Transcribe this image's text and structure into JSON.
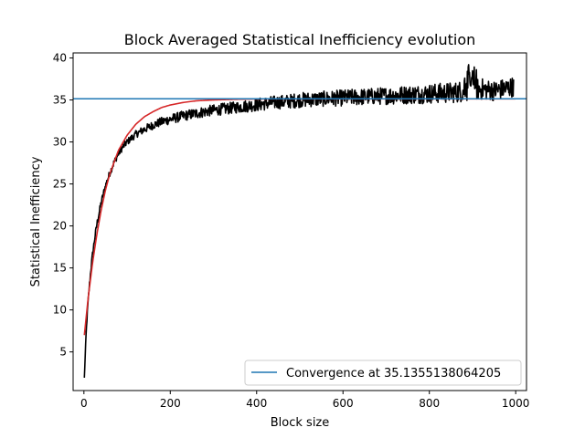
{
  "chart_data": {
    "type": "line",
    "title": "Block Averaged Statistical Inefficiency evolution",
    "xlabel": "Block size",
    "ylabel": "Statistical Inefficiency",
    "xlim": [
      -25,
      1025
    ],
    "ylim": [
      0.4,
      40.6
    ],
    "xticks": [
      0,
      200,
      400,
      600,
      800,
      1000
    ],
    "xtick_labels": [
      "0",
      "200",
      "400",
      "600",
      "800",
      "1000"
    ],
    "yticks": [
      5,
      10,
      15,
      20,
      25,
      30,
      35,
      40
    ],
    "ytick_labels": [
      "5",
      "10",
      "15",
      "20",
      "25",
      "30",
      "35",
      "40"
    ],
    "grid": false,
    "legend_position": "lower-right",
    "legend": [
      {
        "label": "Convergence at 35.1355138064205",
        "color": "#1f77b4"
      }
    ],
    "series": [
      {
        "style": "noisy",
        "color": "#000000",
        "x": [
          1,
          3,
          5,
          8,
          12,
          16,
          20,
          25,
          30,
          40,
          50,
          60,
          70,
          80,
          90,
          100,
          120,
          140,
          160,
          180,
          200,
          230,
          260,
          290,
          320,
          350,
          380,
          410,
          440,
          470,
          500,
          540,
          580,
          620,
          660,
          700,
          740,
          780,
          820,
          860,
          890,
          920,
          950,
          980,
          995
        ],
        "y": [
          1.9,
          4.5,
          7.0,
          9.8,
          12.5,
          14.8,
          16.6,
          18.5,
          20.2,
          22.8,
          24.8,
          26.3,
          27.6,
          28.6,
          29.4,
          30.0,
          30.9,
          31.5,
          32.0,
          32.4,
          32.7,
          33.1,
          33.4,
          33.7,
          33.9,
          34.1,
          34.3,
          34.5,
          34.7,
          34.8,
          35.0,
          35.1,
          35.2,
          35.3,
          35.4,
          35.5,
          35.6,
          35.7,
          35.8,
          35.9,
          36.2,
          36.3,
          36.1,
          36.4,
          36.6
        ],
        "noise": [
          0.1,
          0.2,
          0.3,
          0.3,
          0.4,
          0.4,
          0.4,
          0.4,
          0.4,
          0.4,
          0.4,
          0.4,
          0.4,
          0.4,
          0.4,
          0.4,
          0.45,
          0.5,
          0.5,
          0.55,
          0.6,
          0.6,
          0.65,
          0.65,
          0.7,
          0.7,
          0.75,
          0.8,
          0.8,
          0.85,
          0.9,
          0.9,
          0.95,
          1.0,
          1.0,
          1.05,
          1.1,
          1.15,
          1.2,
          1.25,
          1.35,
          1.3,
          1.2,
          1.2,
          1.2
        ]
      },
      {
        "style": "smooth",
        "color": "#d62728",
        "x": [
          1,
          10,
          20,
          30,
          40,
          50,
          60,
          80,
          100,
          120,
          140,
          160,
          180,
          200,
          230,
          260,
          300,
          350,
          400,
          450,
          500
        ],
        "y": [
          7.0,
          11.5,
          15.6,
          19.0,
          21.9,
          24.3,
          26.2,
          29.0,
          30.8,
          32.1,
          33.0,
          33.6,
          34.1,
          34.4,
          34.7,
          34.9,
          35.0,
          35.08,
          35.12,
          35.13,
          35.135
        ]
      }
    ],
    "hlines": [
      {
        "y": 35.1355138064205,
        "color": "#1f77b4",
        "label": "Convergence at 35.1355138064205"
      }
    ]
  }
}
